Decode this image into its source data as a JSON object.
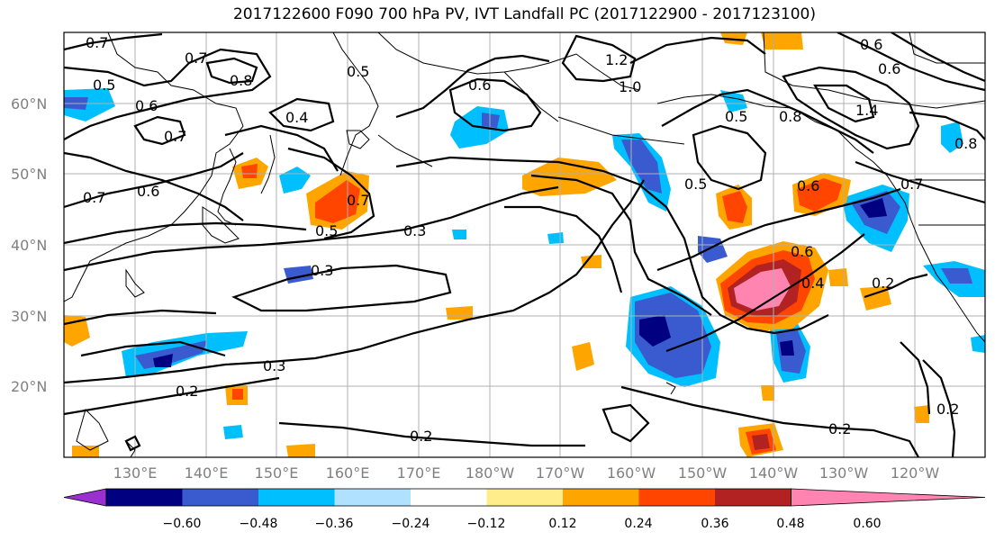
{
  "title": "2017122600 F090 700 hPa PV, IVT Landfall PC (2017122900 - 2017123100)",
  "lat_labels": [
    "60°N",
    "50°N",
    "40°N",
    "30°N",
    "20°N"
  ],
  "lon_labels": [
    "130°E",
    "140°E",
    "150°E",
    "160°E",
    "170°E",
    "180°W",
    "170°W",
    "160°W",
    "150°W",
    "140°W",
    "130°W",
    "120°W"
  ],
  "colorbar": {
    "tick_labels": [
      "−0.60",
      "−0.48",
      "−0.36",
      "−0.24",
      "−0.12",
      "0.12",
      "0.24",
      "0.36",
      "0.48",
      "0.60"
    ],
    "colors": [
      "#9b30d0",
      "#000080",
      "#3a5bd0",
      "#00bfff",
      "#b0e2ff",
      "#ffffff",
      "#ffec8b",
      "#ffa500",
      "#ff4500",
      "#b22222",
      "#ff85b0"
    ]
  },
  "contour_labels": [
    "0.7",
    "0.5",
    "0.6",
    "0.7",
    "0.8",
    "0.4",
    "0.7",
    "0.5",
    "0.6",
    "1.2",
    "1.0",
    "0.5",
    "0.6",
    "0.8",
    "1.4",
    "0.6",
    "0.8",
    "0.7",
    "0.6",
    "0.7",
    "0.5",
    "0.3",
    "0.5",
    "0.6",
    "0.7",
    "0.6",
    "0.4",
    "0.2",
    "0.3",
    "0.3",
    "0.2",
    "0.2",
    "0.2",
    "0.2"
  ]
}
